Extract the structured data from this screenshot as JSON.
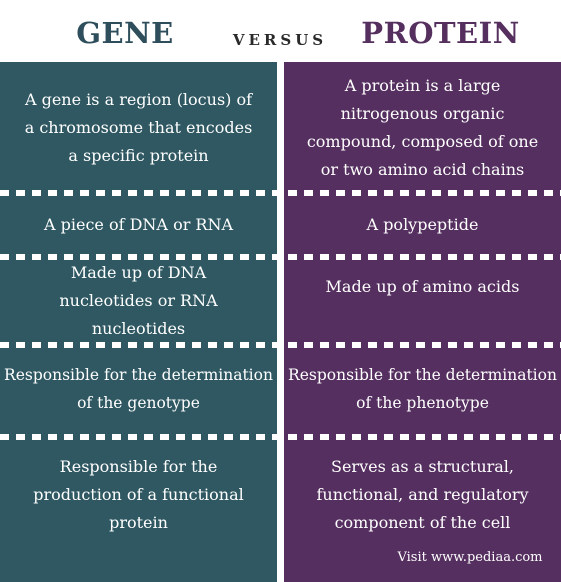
{
  "header": {
    "left_title": "GENE",
    "middle_title": "VERSUS",
    "right_title": "PROTEIN"
  },
  "rows": [
    {
      "gene": "A gene is a region (locus) of a chromosome that encodes a specific protein",
      "protein": "A protein is a large nitrogenous organic compound, composed of one or two amino acid chains"
    },
    {
      "gene": "A piece of DNA or RNA",
      "protein": "A polypeptide"
    },
    {
      "gene": "Made up of DNA nucleotides or RNA nucleotides",
      "protein": "Made up of amino acids"
    },
    {
      "gene": "Responsible for the determination of the genotype",
      "protein": "Responsible for the determination of the phenotype"
    },
    {
      "gene": "Responsible for the production of a functional protein",
      "protein": "Serves as a structural, functional, and regulatory component of the cell"
    }
  ],
  "footer": {
    "credit": "Visit www.pediaa.com"
  },
  "colors": {
    "gene": "#2f5862",
    "protein": "#552f5f",
    "gene_title": "#2f4e5c",
    "protein_title": "#55305e"
  }
}
